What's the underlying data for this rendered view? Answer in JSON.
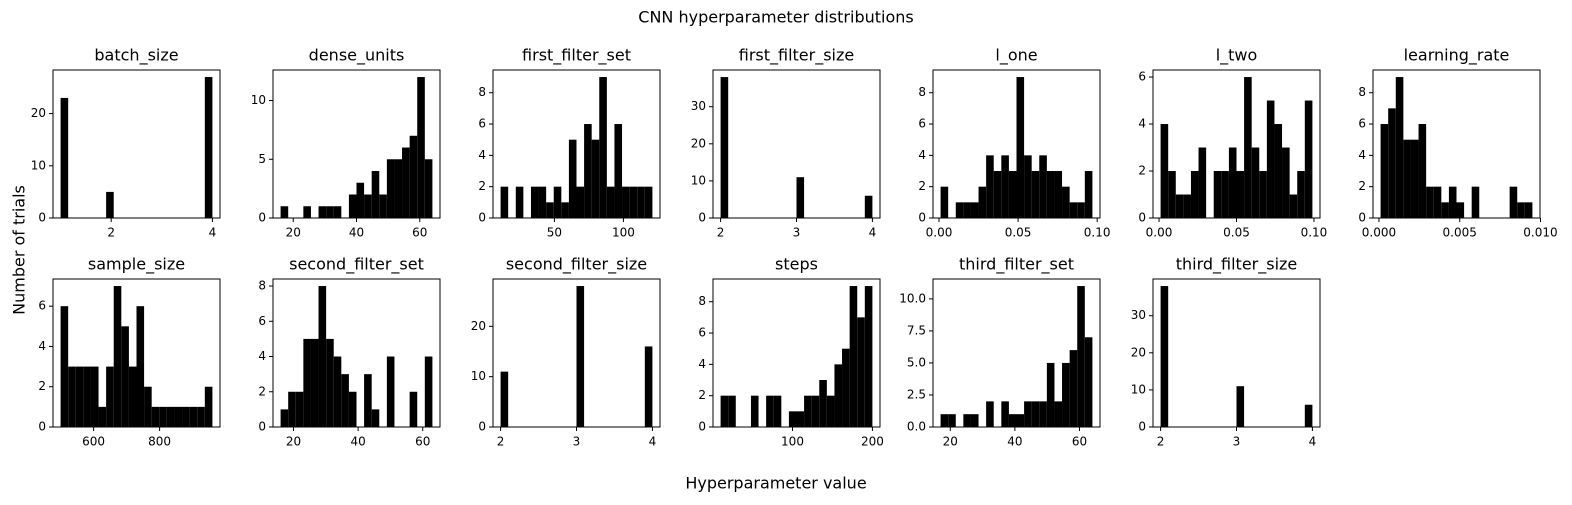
{
  "title": "CNN hyperparameter distributions",
  "xlabel": "Hyperparameter value",
  "ylabel": "Number of trials",
  "chart_data": [
    {
      "type": "histogram",
      "title": "batch_size",
      "color": "#000000",
      "bins": [
        1,
        1.15,
        1.3,
        1.45,
        1.6,
        1.75,
        1.9,
        2.05,
        2.2,
        2.35,
        2.5,
        2.65,
        2.8,
        2.95,
        3.1,
        3.25,
        3.4,
        3.55,
        3.7,
        3.85,
        4
      ],
      "counts": [
        23,
        0,
        0,
        0,
        0,
        0,
        5,
        0,
        0,
        0,
        0,
        0,
        0,
        0,
        0,
        0,
        0,
        0,
        0,
        27
      ],
      "xlim": [
        0.85,
        4.15
      ],
      "ylim": [
        0,
        28.35
      ],
      "xticks": [
        2,
        4
      ],
      "yticks": [
        0,
        10,
        20
      ]
    },
    {
      "type": "histogram",
      "title": "dense_units",
      "color": "#000000",
      "bins": [
        16,
        18.4,
        20.8,
        23.2,
        25.6,
        28,
        30.4,
        32.8,
        35.2,
        37.6,
        40,
        42.4,
        44.8,
        47.2,
        49.6,
        52,
        54.4,
        56.8,
        59.2,
        61.6,
        64
      ],
      "counts": [
        1,
        0,
        0,
        1,
        0,
        1,
        1,
        1,
        0,
        2,
        3,
        2,
        4,
        2,
        5,
        5,
        6,
        7,
        12,
        5
      ],
      "xlim": [
        13.6,
        66.4
      ],
      "ylim": [
        0,
        12.6
      ],
      "xticks": [
        20,
        40,
        60
      ],
      "yticks": [
        0,
        5,
        10
      ]
    },
    {
      "type": "histogram",
      "title": "first_filter_set",
      "color": "#000000",
      "bins": [
        11,
        16.5,
        22,
        27.5,
        33,
        38.5,
        44,
        49.5,
        55,
        60.5,
        66,
        71.5,
        77,
        82.5,
        88,
        93.5,
        99,
        104.5,
        110,
        115.5,
        121
      ],
      "counts": [
        2,
        0,
        2,
        0,
        2,
        2,
        1,
        2,
        1,
        5,
        2,
        6,
        5,
        9,
        2,
        6,
        2,
        2,
        2,
        2
      ],
      "xlim": [
        5.5,
        126.5
      ],
      "ylim": [
        0,
        9.45
      ],
      "xticks": [
        50,
        100
      ],
      "yticks": [
        0,
        2,
        4,
        6,
        8
      ]
    },
    {
      "type": "histogram",
      "title": "first_filter_size",
      "color": "#000000",
      "bins": [
        2,
        2.1,
        2.2,
        2.3,
        2.4,
        2.5,
        2.6,
        2.7,
        2.8,
        2.9,
        3,
        3.1,
        3.2,
        3.3,
        3.4,
        3.5,
        3.6,
        3.7,
        3.8,
        3.9,
        4
      ],
      "counts": [
        38,
        0,
        0,
        0,
        0,
        0,
        0,
        0,
        0,
        0,
        11,
        0,
        0,
        0,
        0,
        0,
        0,
        0,
        0,
        6
      ],
      "xlim": [
        1.9,
        4.1
      ],
      "ylim": [
        0,
        39.9
      ],
      "xticks": [
        2,
        3,
        4
      ],
      "yticks": [
        0,
        10,
        20,
        30
      ]
    },
    {
      "type": "histogram",
      "title": "l_one",
      "color": "#000000",
      "bins": [
        0.001,
        0.0058,
        0.0106,
        0.0154,
        0.0202,
        0.025,
        0.0298,
        0.0346,
        0.0394,
        0.0442,
        0.049,
        0.0538,
        0.0586,
        0.0634,
        0.0682,
        0.073,
        0.0778,
        0.0826,
        0.0874,
        0.0922,
        0.097
      ],
      "counts": [
        2,
        0,
        1,
        1,
        1,
        2,
        4,
        3,
        4,
        3,
        9,
        4,
        3,
        4,
        3,
        3,
        2,
        1,
        1,
        3
      ],
      "xlim": [
        -0.0038,
        0.1018
      ],
      "ylim": [
        0,
        9.45
      ],
      "xticks": [
        {
          "value": 0,
          "label": "0.00"
        },
        0.05,
        {
          "value": 0.1,
          "label": "0.10"
        }
      ],
      "yticks": [
        0,
        2,
        4,
        6,
        8
      ]
    },
    {
      "type": "histogram",
      "title": "l_two",
      "color": "#000000",
      "bins": [
        0.001,
        0.0059,
        0.0108,
        0.0157,
        0.0206,
        0.0255,
        0.0304,
        0.0353,
        0.0402,
        0.0451,
        0.05,
        0.0549,
        0.0598,
        0.0647,
        0.0696,
        0.0745,
        0.0794,
        0.0843,
        0.0892,
        0.0941,
        0.099
      ],
      "counts": [
        4,
        2,
        1,
        1,
        2,
        3,
        0,
        2,
        2,
        3,
        2,
        6,
        3,
        2,
        5,
        4,
        3,
        1,
        2,
        5
      ],
      "xlim": [
        -0.0039,
        0.1039
      ],
      "ylim": [
        0,
        6.3
      ],
      "xticks": [
        {
          "value": 0,
          "label": "0.00"
        },
        0.05,
        {
          "value": 0.1,
          "label": "0.10"
        }
      ],
      "yticks": [
        0,
        2,
        4,
        6
      ]
    },
    {
      "type": "histogram",
      "title": "learning_rate",
      "color": "#000000",
      "bins": [
        0.0001,
        0.00057,
        0.00104,
        0.00151,
        0.00198,
        0.00245,
        0.00292,
        0.00339,
        0.00386,
        0.00433,
        0.0048,
        0.00527,
        0.00574,
        0.00621,
        0.00668,
        0.00715,
        0.00762,
        0.00809,
        0.00856,
        0.00903,
        0.0095
      ],
      "counts": [
        6,
        7,
        9,
        5,
        5,
        6,
        2,
        2,
        1,
        2,
        1,
        0,
        2,
        0,
        0,
        0,
        0,
        2,
        1,
        1
      ],
      "xlim": [
        -0.00037,
        0.00997
      ],
      "ylim": [
        0,
        9.45
      ],
      "xticks": [
        {
          "value": 0,
          "label": "0.000"
        },
        0.005,
        {
          "value": 0.01,
          "label": "0.010"
        }
      ],
      "yticks": [
        0,
        2,
        4,
        6,
        8
      ]
    },
    {
      "type": "histogram",
      "title": "sample_size",
      "color": "#000000",
      "bins": [
        500,
        523,
        546,
        569,
        592,
        615,
        638,
        661,
        684,
        707,
        730,
        753,
        776,
        799,
        822,
        845,
        868,
        891,
        914,
        937,
        960
      ],
      "counts": [
        6,
        3,
        3,
        3,
        3,
        1,
        3,
        7,
        5,
        3,
        6,
        2,
        1,
        1,
        1,
        1,
        1,
        1,
        1,
        2
      ],
      "xlim": [
        477,
        983
      ],
      "ylim": [
        0,
        7.35
      ],
      "xticks": [
        600,
        800
      ],
      "yticks": [
        0,
        2,
        4,
        6
      ]
    },
    {
      "type": "histogram",
      "title": "second_filter_set",
      "color": "#000000",
      "bins": [
        16,
        18.35,
        20.7,
        23.05,
        25.4,
        27.75,
        30.1,
        32.45,
        34.8,
        37.15,
        39.5,
        41.85,
        44.2,
        46.55,
        48.9,
        51.25,
        53.6,
        55.95,
        58.3,
        60.65,
        63
      ],
      "counts": [
        1,
        2,
        2,
        5,
        5,
        8,
        5,
        4,
        3,
        2,
        0,
        3,
        1,
        0,
        4,
        0,
        0,
        2,
        0,
        4
      ],
      "xlim": [
        13.65,
        65.35
      ],
      "ylim": [
        0,
        8.4
      ],
      "xticks": [
        20,
        40,
        60
      ],
      "yticks": [
        0,
        2,
        4,
        6,
        8
      ]
    },
    {
      "type": "histogram",
      "title": "second_filter_size",
      "color": "#000000",
      "bins": [
        2,
        2.1,
        2.2,
        2.3,
        2.4,
        2.5,
        2.6,
        2.7,
        2.8,
        2.9,
        3,
        3.1,
        3.2,
        3.3,
        3.4,
        3.5,
        3.6,
        3.7,
        3.8,
        3.9,
        4
      ],
      "counts": [
        11,
        0,
        0,
        0,
        0,
        0,
        0,
        0,
        0,
        0,
        28,
        0,
        0,
        0,
        0,
        0,
        0,
        0,
        0,
        16
      ],
      "xlim": [
        1.9,
        4.1
      ],
      "ylim": [
        0,
        29.4
      ],
      "xticks": [
        2,
        3,
        4
      ],
      "yticks": [
        0,
        10,
        20
      ]
    },
    {
      "type": "histogram",
      "title": "steps",
      "color": "#000000",
      "bins": [
        10,
        19.5,
        29,
        38.5,
        48,
        57.5,
        67,
        76.5,
        86,
        95.5,
        105,
        114.5,
        124,
        133.5,
        143,
        152.5,
        162,
        171.5,
        181,
        190.5,
        200
      ],
      "counts": [
        2,
        2,
        0,
        0,
        2,
        0,
        2,
        2,
        0,
        1,
        1,
        2,
        2,
        3,
        2,
        4,
        5,
        9,
        7,
        9
      ],
      "xlim": [
        0.5,
        209.5
      ],
      "ylim": [
        0,
        9.45
      ],
      "xticks": [
        100,
        200
      ],
      "yticks": [
        0,
        2,
        4,
        6,
        8
      ]
    },
    {
      "type": "histogram",
      "title": "third_filter_set",
      "color": "#000000",
      "bins": [
        17,
        19.35,
        21.7,
        24.05,
        26.4,
        28.75,
        31.1,
        33.45,
        35.8,
        38.15,
        40.5,
        42.85,
        45.2,
        47.55,
        49.9,
        52.25,
        54.6,
        56.95,
        59.3,
        61.65,
        64
      ],
      "counts": [
        1,
        1,
        0,
        1,
        1,
        0,
        2,
        0,
        2,
        1,
        1,
        2,
        2,
        2,
        5,
        2,
        5,
        6,
        11,
        7
      ],
      "xlim": [
        14.65,
        66.35
      ],
      "ylim": [
        0,
        11.55
      ],
      "xticks": [
        20,
        40,
        60
      ],
      "yticks": [
        {
          "value": 0,
          "label": "0.0"
        },
        2.5,
        {
          "value": 5,
          "label": "5.0"
        },
        7.5,
        {
          "value": 10,
          "label": "10.0"
        }
      ]
    },
    {
      "type": "histogram",
      "title": "third_filter_size",
      "color": "#000000",
      "bins": [
        2,
        2.1,
        2.2,
        2.3,
        2.4,
        2.5,
        2.6,
        2.7,
        2.8,
        2.9,
        3,
        3.1,
        3.2,
        3.3,
        3.4,
        3.5,
        3.6,
        3.7,
        3.8,
        3.9,
        4
      ],
      "counts": [
        38,
        0,
        0,
        0,
        0,
        0,
        0,
        0,
        0,
        0,
        11,
        0,
        0,
        0,
        0,
        0,
        0,
        0,
        0,
        6
      ],
      "xlim": [
        1.9,
        4.1
      ],
      "ylim": [
        0,
        39.9
      ],
      "xticks": [
        2,
        3,
        4
      ],
      "yticks": [
        0,
        10,
        20,
        30
      ]
    }
  ]
}
